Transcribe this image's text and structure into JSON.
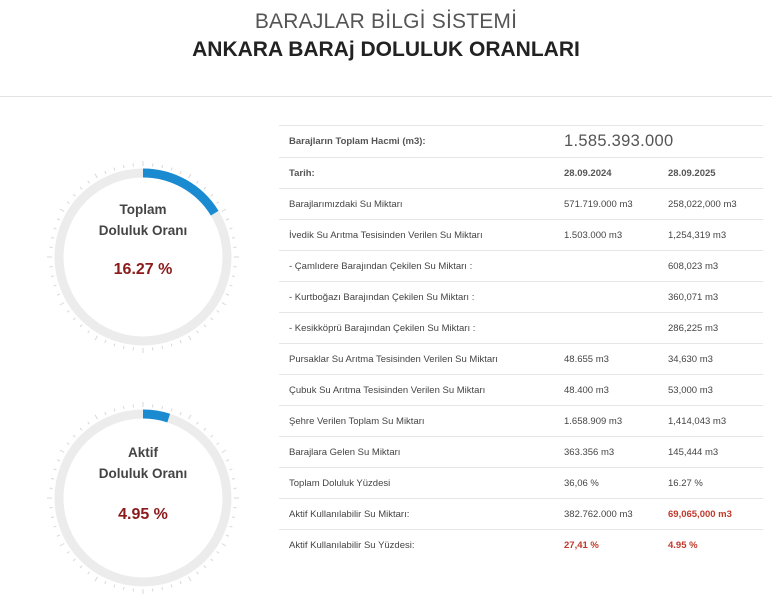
{
  "header": {
    "system_title": "BARAJLAR BİLGİ SİSTEMİ",
    "page_title": "ANKARA BARAj DOLULUK ORANLARI"
  },
  "gauges": [
    {
      "label_line1": "Toplam",
      "label_line2": "Doluluk Oranı",
      "value_text": "16.27 %",
      "fraction": 0.1627,
      "color": "#1a8bd1"
    },
    {
      "label_line1": "Aktif",
      "label_line2": "Doluluk Oranı",
      "value_text": "4.95 %",
      "fraction": 0.0495,
      "color": "#1a8bd1"
    }
  ],
  "table": {
    "total_volume_label": "Barajların Toplam Hacmi (m3):",
    "total_volume_value": "1.585.393.000",
    "date_label": "Tarih:",
    "date_2024": "28.09.2024",
    "date_2025": "28.09.2025",
    "rows": [
      {
        "label": "Barajlarımızdaki Su Miktarı",
        "v2024": "571.719.000 m3",
        "v2025": "258,022,000 m3"
      },
      {
        "label": "İvedik Su Arıtma Tesisinden Verilen Su Miktarı",
        "v2024": "1.503.000 m3",
        "v2025": "1,254,319 m3"
      },
      {
        "label": "- Çamlıdere Barajından Çekilen Su Miktarı :",
        "v2024": "",
        "v2025": "608,023 m3"
      },
      {
        "label": "- Kurtboğazı Barajından Çekilen Su Miktarı :",
        "v2024": "",
        "v2025": "360,071 m3"
      },
      {
        "label": "- Kesikköprü Barajından Çekilen Su Miktarı :",
        "v2024": "",
        "v2025": "286,225 m3"
      },
      {
        "label": "Pursaklar Su Arıtma Tesisinden Verilen Su Miktarı",
        "v2024": "48.655 m3",
        "v2025": "34,630 m3"
      },
      {
        "label": "Çubuk Su Arıtma Tesisinden Verilen Su Miktarı",
        "v2024": "48.400 m3",
        "v2025": "53,000 m3"
      },
      {
        "label": "Şehre Verilen Toplam Su Miktarı",
        "v2024": "1.658.909 m3",
        "v2025": "1,414,043 m3"
      },
      {
        "label": "Barajlara Gelen Su Miktarı",
        "v2024": "363.356 m3",
        "v2025": "145,444 m3"
      },
      {
        "label": "Toplam Doluluk Yüzdesi",
        "v2024": "36,06 %",
        "v2025": "16.27 %"
      },
      {
        "label": "Aktif Kullanılabilir Su Miktarı:",
        "v2024": "382.762.000 m3",
        "v2025": "69,065,000 m3",
        "red2025": true
      },
      {
        "label": "Aktif Kullanılabilir Su Yüzdesi:",
        "v2024": "27,41 %",
        "v2025": "4.95 %",
        "red2024": true,
        "red2025": true
      }
    ]
  }
}
